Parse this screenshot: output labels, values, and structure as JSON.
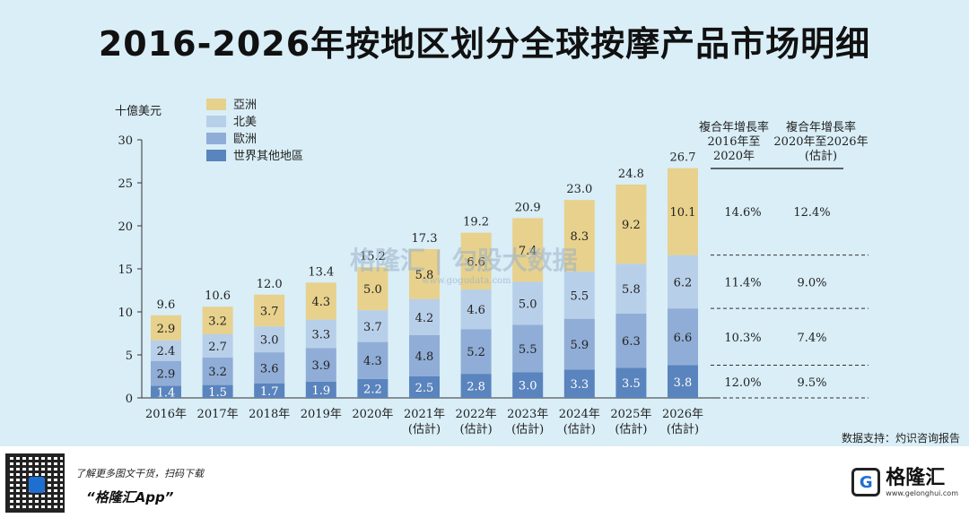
{
  "title": "2016-2026年按地区划分全球按摩产品市场明细",
  "source_note": "数据支持：灼识咨询报告",
  "watermark": {
    "text": "格隆汇 | 勾股大数据",
    "url": "www.gogudata.com"
  },
  "footer": {
    "tagline": "了解更多图文干货，扫码下载",
    "app": "“格隆汇App”",
    "brand_name": "格隆汇",
    "brand_url": "www.gelonghui.com"
  },
  "chart_data": {
    "type": "bar",
    "stacked": true,
    "unit_label": "十億美元",
    "ylim": [
      0,
      30
    ],
    "yticks": [
      0,
      5,
      10,
      15,
      20,
      25,
      30
    ],
    "categories": [
      [
        "2016年"
      ],
      [
        "2017年"
      ],
      [
        "2018年"
      ],
      [
        "2019年"
      ],
      [
        "2020年"
      ],
      [
        "2021年",
        "(估計)"
      ],
      [
        "2022年",
        "(估計)"
      ],
      [
        "2023年",
        "(估計)"
      ],
      [
        "2024年",
        "(估計)"
      ],
      [
        "2025年",
        "(估計)"
      ],
      [
        "2026年",
        "(估計)"
      ]
    ],
    "series": [
      {
        "name": "世界其他地區",
        "color": "#5a84bd",
        "values": [
          1.4,
          1.5,
          1.7,
          1.9,
          2.2,
          2.5,
          2.8,
          3.0,
          3.3,
          3.5,
          3.8
        ]
      },
      {
        "name": "歐洲",
        "color": "#8fadd6",
        "values": [
          2.9,
          3.2,
          3.6,
          3.9,
          4.3,
          4.8,
          5.2,
          5.5,
          5.9,
          6.3,
          6.6
        ]
      },
      {
        "name": "北美",
        "color": "#b8cfe9",
        "values": [
          2.4,
          2.7,
          3.0,
          3.3,
          3.7,
          4.2,
          4.6,
          5.0,
          5.5,
          5.8,
          6.2
        ]
      },
      {
        "name": "亞洲",
        "color": "#e7d18c",
        "values": [
          2.9,
          3.2,
          3.7,
          4.3,
          5.0,
          5.8,
          6.6,
          7.4,
          8.3,
          9.2,
          10.1
        ]
      }
    ],
    "totals": [
      9.6,
      10.6,
      12.0,
      13.4,
      15.2,
      17.3,
      19.2,
      20.9,
      23.0,
      24.8,
      26.7
    ],
    "legend_order": [
      "亞洲",
      "北美",
      "歐洲",
      "世界其他地區"
    ],
    "legend_position": "top-left",
    "cagr_table": {
      "headers": [
        [
          "複合年增長率",
          "2016年至",
          "2020年"
        ],
        [
          "複合年增長率",
          "2020年至2026年",
          "(估計)"
        ]
      ],
      "rows": [
        {
          "series": "亞洲",
          "cagr_2016_2020": "14.6%",
          "cagr_2020_2026": "12.4%"
        },
        {
          "series": "北美",
          "cagr_2016_2020": "11.4%",
          "cagr_2020_2026": "9.0%"
        },
        {
          "series": "歐洲",
          "cagr_2016_2020": "10.3%",
          "cagr_2020_2026": "7.4%"
        },
        {
          "series": "世界其他地區",
          "cagr_2016_2020": "12.0%",
          "cagr_2020_2026": "9.5%"
        }
      ]
    }
  }
}
